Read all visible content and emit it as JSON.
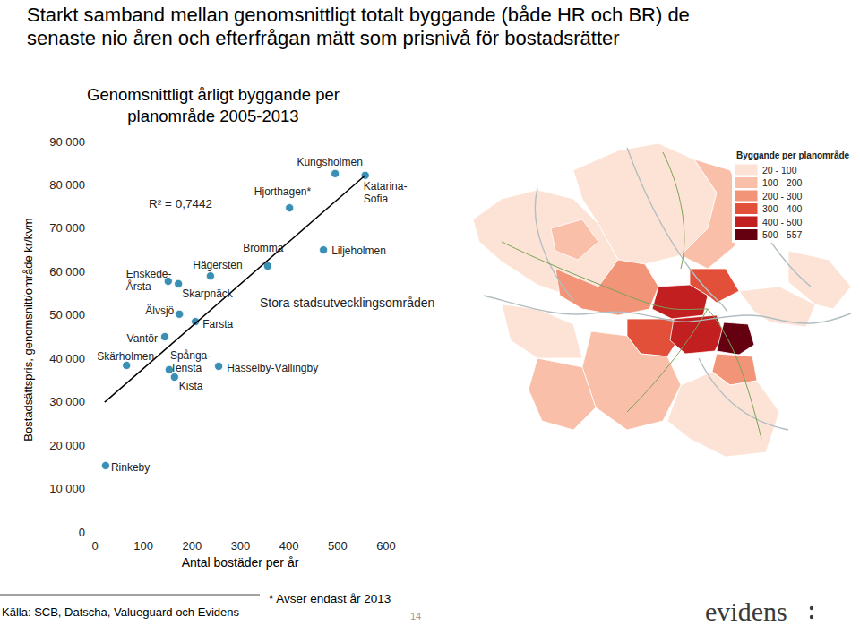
{
  "chart_data": {
    "type": "scatter",
    "title": "Starkt samband mellan genomsnittligt totalt byggande (både HR och BR) de senaste nio åren och efterfrågan mätt som prisnivå för bostadsrätter",
    "subtitle": "Genomsnittligt årligt byggande per planområde 2005-2013",
    "x_label": "Antal bostäder per år",
    "y_label": "Bostadsättspris, genomsnitt/område kr/kvm",
    "annotations": [
      "R² = 0,7442",
      "Stora stadsutvecklingsområden"
    ],
    "xlim": [
      0,
      600
    ],
    "xticks": [
      0,
      100,
      200,
      300,
      400,
      500,
      600
    ],
    "ylim": [
      0,
      90000
    ],
    "yticks": [
      0,
      {
        "value": 10000,
        "label": "10 000"
      },
      {
        "value": 20000,
        "label": "20 000"
      },
      {
        "value": 30000,
        "label": "30 000"
      },
      {
        "value": 40000,
        "label": "40 000"
      },
      {
        "value": 50000,
        "label": "50 000"
      },
      {
        "value": 60000,
        "label": "60 000"
      },
      {
        "value": 70000,
        "label": "70 000"
      },
      {
        "value": 80000,
        "label": "80 000"
      },
      {
        "value": 90000,
        "label": "90 000"
      }
    ],
    "grid": false,
    "series": [
      {
        "type": "scatter",
        "marker": "circle",
        "color": "#3a8fb5",
        "labels": [
          "Rinkeby",
          "Skärholmen",
          "Vantör",
          "Älvsjö",
          "Enskede-Årsta",
          "Skarpnäck",
          "Hägersten",
          "Farsta",
          "Spånga-Tensta",
          "Kista",
          "Hässelby-Vällingby",
          "Bromma",
          "Hjorthagen*",
          "Liljeholmen",
          "Kungsholmen",
          "Katarina-Sofia"
        ],
        "x": [
          22,
          65,
          144,
          174,
          151,
          172,
          238,
          207,
          153,
          164,
          255,
          356,
          401,
          471,
          495,
          557
        ],
        "values": [
          15300,
          38400,
          45000,
          50200,
          57800,
          57200,
          59000,
          48500,
          37400,
          35700,
          38200,
          61300,
          74700,
          65000,
          82600,
          82200
        ]
      },
      {
        "type": "line",
        "line_style": "solid",
        "color": "#000000",
        "x": [
          20,
          557
        ],
        "values": [
          29900,
          82200
        ]
      }
    ]
  },
  "map": {
    "legend_title": "Byggande per planområde",
    "legend": [
      {
        "label": "20 - 100",
        "color": "#fde3d6"
      },
      {
        "label": "100 - 200",
        "color": "#f9bfa8"
      },
      {
        "label": "200 - 300",
        "color": "#f29478"
      },
      {
        "label": "300 - 400",
        "color": "#e2503a"
      },
      {
        "label": "400 - 500",
        "color": "#c11f20"
      },
      {
        "label": "500 - 557",
        "color": "#64000f"
      }
    ]
  },
  "page": {
    "source": "Källa: SCB, Datscha, Valueguard och Evidens",
    "footnote": "* Avser endast år 2013",
    "page_number": "14",
    "logo": "evidens"
  }
}
